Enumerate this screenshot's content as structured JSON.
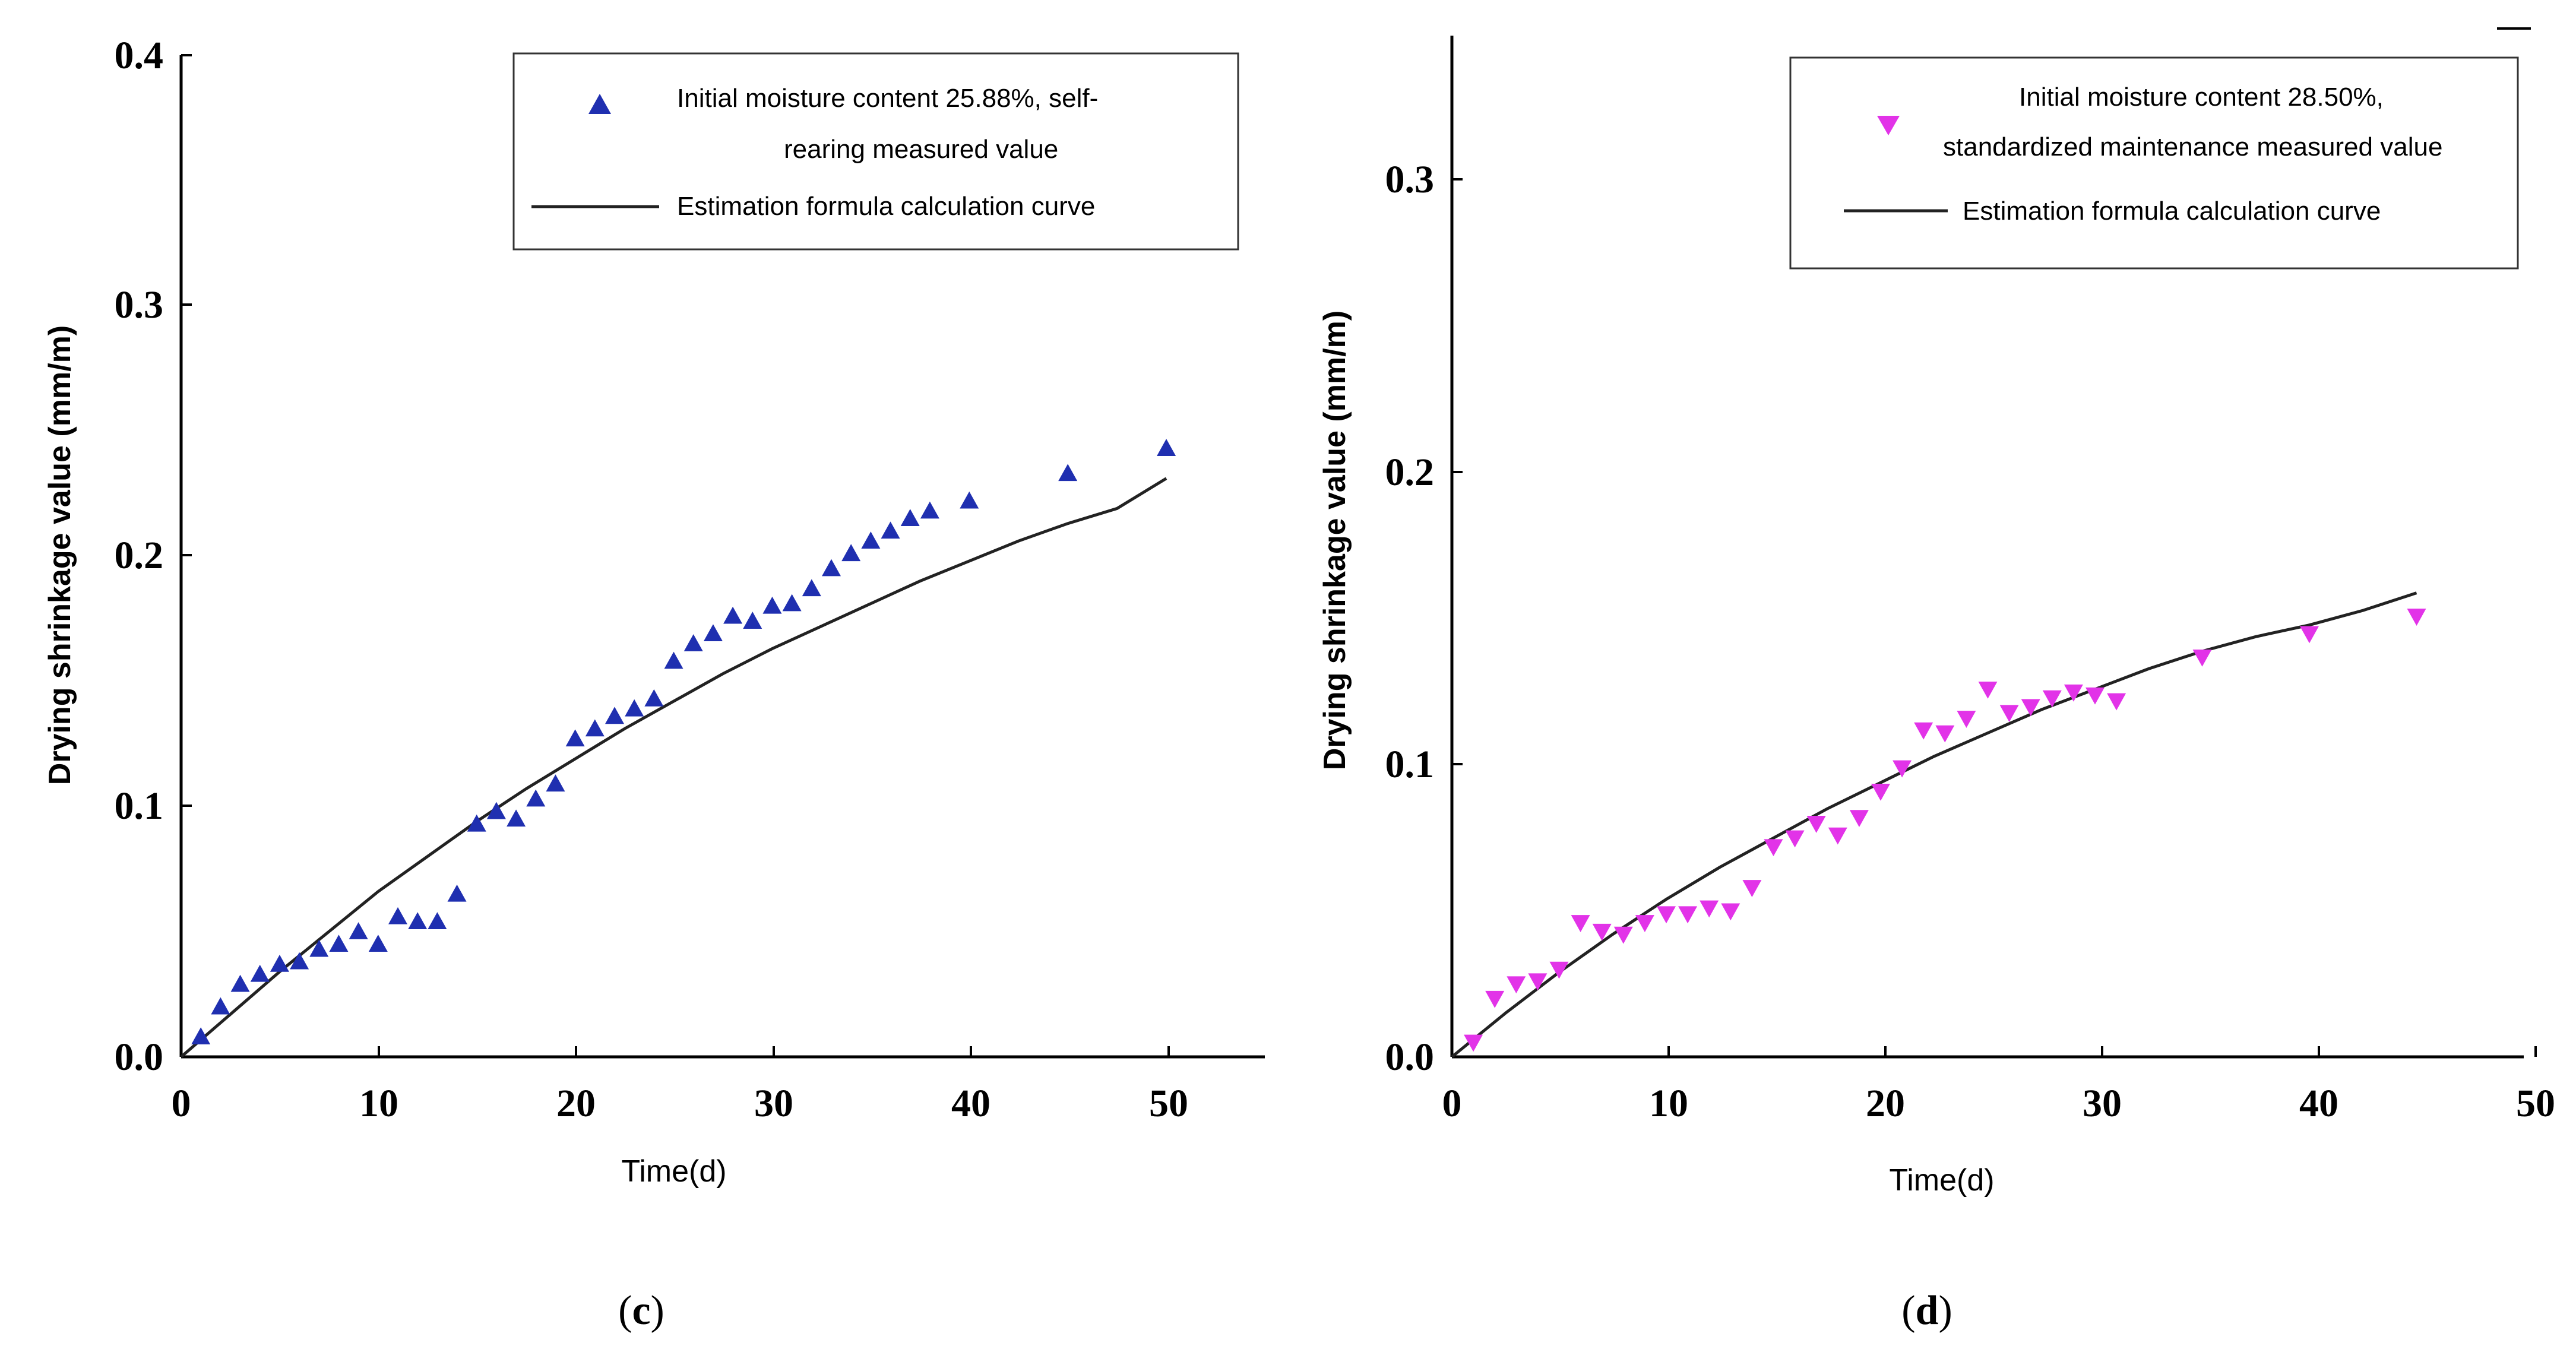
{
  "chart_data": [
    {
      "panel": "c",
      "type": "scatter",
      "xlabel": "Time(d)",
      "ylabel": "Drying shrinkage value (mm/m)",
      "xlim": [
        0,
        55
      ],
      "ylim": [
        0,
        0.4
      ],
      "xticks": [
        "0",
        "10",
        "20",
        "30",
        "40",
        "50"
      ],
      "yticks": [
        "0.0",
        "0.1",
        "0.2",
        "0.3",
        "0.4"
      ],
      "legend": {
        "marker_line1": "Initial moisture content 25.88%, self-",
        "marker_line2": "rearing measured value",
        "curve": "Estimation formula calculation curve",
        "placement": "top-right"
      },
      "caption_open": "(",
      "caption_letter": "c",
      "caption_close": ")",
      "series": [
        {
          "name": "Initial moisture content 25.88%, self-rearing measured value",
          "marker": "triangle-up",
          "color": "#1f2fb0",
          "x": [
            1,
            2,
            3,
            4,
            5,
            6,
            7,
            8,
            9,
            10,
            11,
            12,
            13,
            14,
            15,
            16,
            17,
            18,
            19,
            20,
            21,
            22,
            23,
            24,
            25,
            26,
            27,
            28,
            29,
            30,
            31,
            32,
            33,
            34,
            35,
            36,
            37,
            38,
            40,
            45,
            50
          ],
          "y": [
            0.008,
            0.02,
            0.029,
            0.033,
            0.037,
            0.038,
            0.043,
            0.045,
            0.05,
            0.045,
            0.056,
            0.054,
            0.054,
            0.065,
            0.093,
            0.098,
            0.095,
            0.103,
            0.109,
            0.127,
            0.131,
            0.136,
            0.139,
            0.143,
            0.158,
            0.165,
            0.169,
            0.176,
            0.174,
            0.18,
            0.181,
            0.187,
            0.195,
            0.201,
            0.206,
            0.21,
            0.215,
            0.218,
            0.222,
            0.233,
            0.243
          ]
        },
        {
          "name": "Estimation formula calculation curve",
          "type": "line",
          "color": "#222222",
          "x": [
            0,
            2.5,
            5,
            7.5,
            10,
            12.5,
            15,
            17.5,
            20,
            22.5,
            25,
            27.5,
            30,
            32.5,
            35,
            37.5,
            40,
            42.5,
            45,
            47.5,
            50
          ],
          "y": [
            0,
            0.017,
            0.034,
            0.05,
            0.066,
            0.08,
            0.094,
            0.107,
            0.119,
            0.131,
            0.142,
            0.153,
            0.163,
            0.172,
            0.181,
            0.19,
            0.198,
            0.206,
            0.213,
            0.219,
            0.231
          ]
        }
      ]
    },
    {
      "panel": "d",
      "type": "scatter",
      "xlabel": "Time(d)",
      "ylabel": "Drying shrinkage value (mm/m)",
      "xlim": [
        0,
        50
      ],
      "ylim": [
        0,
        0.35
      ],
      "xticks": [
        "0",
        "10",
        "20",
        "30",
        "40",
        "50"
      ],
      "yticks": [
        "0.0",
        "0.1",
        "0.2",
        "0.3"
      ],
      "legend": {
        "marker_line1": "Initial moisture content 28.50%,",
        "marker_line2": "standardized maintenance measured value",
        "curve": "Estimation formula calculation curve",
        "placement": "top-right"
      },
      "caption_open": "(",
      "caption_letter": "d",
      "caption_close": ")",
      "series": [
        {
          "name": "Initial moisture content 28.50%, standardized maintenance measured value",
          "marker": "triangle-down",
          "color": "#e233e8",
          "x": [
            1,
            2,
            3,
            4,
            5,
            6,
            7,
            8,
            9,
            10,
            11,
            12,
            13,
            14,
            15,
            16,
            17,
            18,
            19,
            20,
            21,
            22,
            23,
            24,
            25,
            26,
            27,
            28,
            29,
            30,
            31,
            35,
            40,
            45
          ],
          "y": [
            0.005,
            0.02,
            0.025,
            0.026,
            0.03,
            0.046,
            0.043,
            0.042,
            0.046,
            0.049,
            0.049,
            0.051,
            0.05,
            0.058,
            0.072,
            0.075,
            0.08,
            0.076,
            0.082,
            0.091,
            0.099,
            0.112,
            0.111,
            0.116,
            0.126,
            0.118,
            0.12,
            0.123,
            0.125,
            0.124,
            0.122,
            0.137,
            0.145,
            0.151
          ]
        },
        {
          "name": "Estimation formula calculation curve",
          "type": "line",
          "color": "#222222",
          "x": [
            0,
            2.5,
            5,
            7.5,
            10,
            12.5,
            15,
            17.5,
            20,
            22.5,
            25,
            27.5,
            30,
            32.5,
            35,
            37.5,
            40,
            42.5,
            45
          ],
          "y": [
            0,
            0.015,
            0.029,
            0.042,
            0.054,
            0.065,
            0.075,
            0.085,
            0.094,
            0.103,
            0.111,
            0.119,
            0.126,
            0.133,
            0.139,
            0.144,
            0.148,
            0.153,
            0.159
          ]
        }
      ]
    }
  ]
}
